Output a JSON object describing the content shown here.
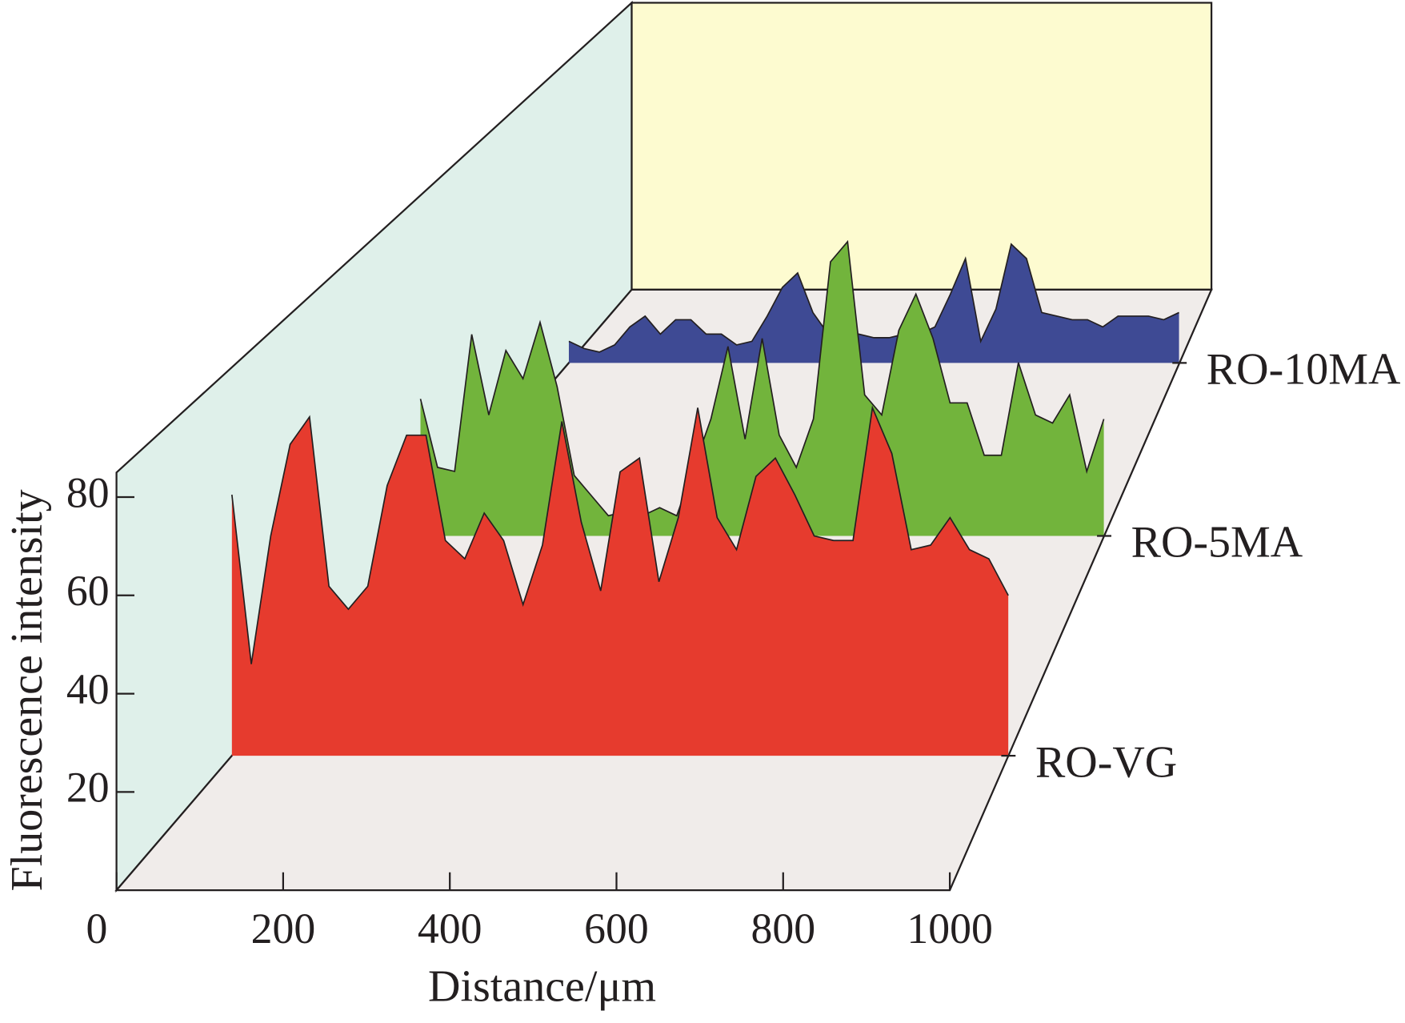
{
  "chart_data": {
    "type": "area3d",
    "xlabel": "Distance/μm",
    "ylabel": "Fluorescence intensity",
    "x": [
      0,
      25,
      50,
      75,
      100,
      125,
      150,
      175,
      200,
      225,
      250,
      275,
      300,
      325,
      350,
      375,
      400,
      425,
      450,
      475,
      500,
      525,
      550,
      575,
      600,
      625,
      650,
      675,
      700,
      725,
      750,
      775,
      800,
      825,
      850,
      875,
      900,
      925,
      950,
      975,
      1000
    ],
    "xlim": [
      0,
      1000
    ],
    "xticks": [
      0,
      200,
      400,
      600,
      800,
      1000
    ],
    "ylim": [
      0,
      85
    ],
    "yticks": [
      20,
      40,
      60,
      80
    ],
    "series": [
      {
        "name": "RO-VG",
        "color": "#e63b2e",
        "values": [
          57,
          20,
          48,
          68,
          74,
          37,
          32,
          37,
          59,
          70,
          70,
          47,
          43,
          53,
          47,
          33,
          46,
          73,
          51,
          36,
          62,
          65,
          38,
          52,
          76,
          52,
          45,
          61,
          65,
          57,
          48,
          47,
          47,
          76,
          66,
          45,
          46,
          52,
          45,
          43,
          35
        ]
      },
      {
        "name": "RO-5MA",
        "color": "#72b43c",
        "values": [
          34,
          17,
          16,
          50,
          30,
          46,
          39,
          53,
          37,
          15,
          10,
          5,
          6,
          5,
          7,
          5,
          17,
          29,
          47,
          24,
          49,
          25,
          17,
          29,
          68,
          73,
          35,
          30,
          51,
          60,
          49,
          33,
          33,
          20,
          20,
          43,
          30,
          28,
          35,
          16,
          29
        ]
      },
      {
        "name": "RO-10MA",
        "color": "#3e4a94",
        "values": [
          6,
          4,
          3,
          5,
          10,
          13,
          8,
          12,
          12,
          8,
          8,
          5,
          6,
          13,
          21,
          25,
          14,
          8,
          8,
          8,
          7,
          7,
          8,
          8,
          10,
          19,
          29,
          6,
          15,
          33,
          29,
          14,
          13,
          12,
          12,
          10,
          13,
          13,
          13,
          12,
          14
        ]
      }
    ]
  }
}
